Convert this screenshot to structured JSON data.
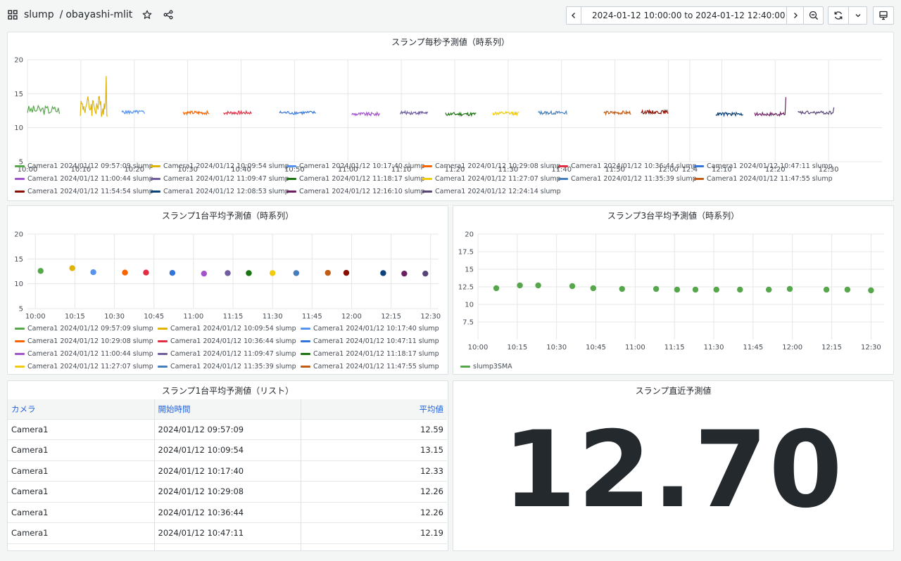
{
  "header": {
    "folder": "slump",
    "separator": "/",
    "dashboard": "obayashi-mlit",
    "time_range": "2024-01-12 10:00:00 to 2024-01-12 12:40:00"
  },
  "icons": {
    "apps": "grid-icon",
    "star": "star-icon",
    "share": "share-icon",
    "prev": "chevron-left-icon",
    "clock": "clock-icon",
    "caret": "chevron-down-icon",
    "next": "chevron-right-icon",
    "zoom": "zoom-out-icon",
    "refresh": "refresh-icon",
    "tv": "monitor-icon"
  },
  "panels": {
    "p1_title": "スランプ毎秒予測値（時系列）",
    "p2_title": "スランプ1台平均予測値（時系列）",
    "p3_title": "スランプ3台平均予測値（時系列）",
    "p4_title": "スランプ1台平均予測値（リスト）",
    "p5_title": "スランプ直近予測値"
  },
  "series_meta": [
    {
      "name": "Camera1 2024/01/12 09:57:09 slump",
      "color": "#56a64b"
    },
    {
      "name": "Camera1 2024/01/12 10:09:54 slump",
      "color": "#e0b400"
    },
    {
      "name": "Camera1 2024/01/12 10:17:40 slump",
      "color": "#5794f2"
    },
    {
      "name": "Camera1 2024/01/12 10:29:08 slump",
      "color": "#fa6400"
    },
    {
      "name": "Camera1 2024/01/12 10:36:44 slump",
      "color": "#e02f44"
    },
    {
      "name": "Camera1 2024/01/12 10:47:11 slump",
      "color": "#3274d9"
    },
    {
      "name": "Camera1 2024/01/12 11:00:44 slump",
      "color": "#a352cc"
    },
    {
      "name": "Camera1 2024/01/12 11:09:47 slump",
      "color": "#705da0"
    },
    {
      "name": "Camera1 2024/01/12 11:18:17 slump",
      "color": "#19730e"
    },
    {
      "name": "Camera1 2024/01/12 11:27:07 slump",
      "color": "#f2cc0c"
    },
    {
      "name": "Camera1 2024/01/12 11:35:39 slump",
      "color": "#447ebc"
    },
    {
      "name": "Camera1 2024/01/12 11:47:55 slump",
      "color": "#c15c17"
    },
    {
      "name": "Camera1 2024/01/12 11:54:54 slump",
      "color": "#890f02"
    },
    {
      "name": "Camera1 2024/01/12 12:08:53 slump",
      "color": "#0a437c"
    },
    {
      "name": "Camera1 2024/01/12 12:16:10 slump",
      "color": "#6d1f62"
    },
    {
      "name": "Camera1 2024/01/12 12:24:14 slump",
      "color": "#584477"
    }
  ],
  "chart_data": [
    {
      "type": "line",
      "xlabel": "",
      "ylabel": "",
      "xlim": [
        "10:00",
        "12:40"
      ],
      "ylim": [
        5,
        20
      ],
      "x_ticks": [
        "10:00",
        "10:10",
        "10:20",
        "10:30",
        "10:40",
        "10:50",
        "11:00",
        "11:10",
        "11:20",
        "11:30",
        "11:40",
        "11:50",
        "12:00",
        "12:10",
        "12:20",
        "12:30",
        "12:4"
      ],
      "y_ticks": [
        "5",
        "10",
        "15",
        "20"
      ],
      "grid": true,
      "legend": "bottom",
      "series": [
        {
          "start": "09:57:09",
          "end": "10:06:00",
          "level": 12.6
        },
        {
          "start": "10:09:54",
          "end": "10:15:00",
          "level": 13.2
        },
        {
          "start": "10:17:40",
          "end": "10:22:00",
          "level": 12.3
        },
        {
          "start": "10:29:08",
          "end": "10:34:00",
          "level": 12.2
        },
        {
          "start": "10:36:44",
          "end": "10:42:00",
          "level": 12.2
        },
        {
          "start": "10:47:11",
          "end": "10:54:00",
          "level": 12.2
        },
        {
          "start": "11:00:44",
          "end": "11:06:00",
          "level": 12.0
        },
        {
          "start": "11:09:47",
          "end": "11:15:00",
          "level": 12.2
        },
        {
          "start": "11:18:17",
          "end": "11:24:00",
          "level": 12.0
        },
        {
          "start": "11:27:07",
          "end": "11:32:00",
          "level": 12.1
        },
        {
          "start": "11:35:39",
          "end": "11:41:00",
          "level": 12.2
        },
        {
          "start": "11:47:55",
          "end": "11:53:00",
          "level": 12.2
        },
        {
          "start": "11:54:54",
          "end": "12:00:00",
          "level": 12.3
        },
        {
          "start": "12:08:53",
          "end": "12:14:00",
          "level": 12.0
        },
        {
          "start": "12:16:10",
          "end": "12:22:00",
          "level": 12.0
        },
        {
          "start": "12:24:14",
          "end": "12:31:00",
          "level": 12.2
        }
      ]
    },
    {
      "type": "scatter",
      "xlabel": "",
      "ylabel": "",
      "xlim": [
        "09:57",
        "12:33"
      ],
      "ylim": [
        5,
        20
      ],
      "x_ticks": [
        "10:00",
        "10:15",
        "10:30",
        "10:45",
        "11:00",
        "11:15",
        "11:30",
        "11:45",
        "12:00",
        "12:15",
        "12:30"
      ],
      "y_ticks": [
        "5",
        "10",
        "15",
        "20"
      ],
      "grid": true,
      "legend": "bottom",
      "points": [
        {
          "x": "10:02",
          "y": 12.59,
          "s": 0
        },
        {
          "x": "10:14",
          "y": 13.15,
          "s": 1
        },
        {
          "x": "10:22",
          "y": 12.33,
          "s": 2
        },
        {
          "x": "10:34",
          "y": 12.26,
          "s": 3
        },
        {
          "x": "10:42",
          "y": 12.26,
          "s": 4
        },
        {
          "x": "10:52",
          "y": 12.19,
          "s": 5
        },
        {
          "x": "11:04",
          "y": 12.05,
          "s": 6
        },
        {
          "x": "11:13",
          "y": 12.15,
          "s": 7
        },
        {
          "x": "11:21",
          "y": 12.15,
          "s": 8
        },
        {
          "x": "11:30",
          "y": 12.15,
          "s": 9
        },
        {
          "x": "11:39",
          "y": 12.15,
          "s": 10
        },
        {
          "x": "11:51",
          "y": 12.2,
          "s": 11
        },
        {
          "x": "11:58",
          "y": 12.2,
          "s": 12
        },
        {
          "x": "12:12",
          "y": 12.15,
          "s": 13
        },
        {
          "x": "12:20",
          "y": 12.05,
          "s": 14
        },
        {
          "x": "12:28",
          "y": 12.05,
          "s": 15
        }
      ],
      "legend_items": [
        0,
        1,
        2,
        3,
        4,
        5,
        6,
        7,
        8,
        9,
        10,
        11
      ]
    },
    {
      "type": "scatter",
      "xlabel": "",
      "ylabel": "",
      "xlim": [
        "10:00",
        "12:35"
      ],
      "ylim": [
        5,
        20
      ],
      "x_ticks": [
        "10:00",
        "10:15",
        "10:30",
        "10:45",
        "11:00",
        "11:15",
        "11:30",
        "11:45",
        "12:00",
        "12:15",
        "12:30"
      ],
      "y_ticks": [
        "7.5",
        "10",
        "12.5",
        "15",
        "17.5",
        "20"
      ],
      "grid": true,
      "legend": "bottom",
      "series": [
        {
          "name": "slump3SMA",
          "color": "#56a64b",
          "points": [
            {
              "x": "10:07",
              "y": 12.3
            },
            {
              "x": "10:16",
              "y": 12.7
            },
            {
              "x": "10:23",
              "y": 12.7
            },
            {
              "x": "10:36",
              "y": 12.6
            },
            {
              "x": "10:44",
              "y": 12.3
            },
            {
              "x": "10:55",
              "y": 12.2
            },
            {
              "x": "11:08",
              "y": 12.2
            },
            {
              "x": "11:16",
              "y": 12.1
            },
            {
              "x": "11:23",
              "y": 12.1
            },
            {
              "x": "11:31",
              "y": 12.1
            },
            {
              "x": "11:40",
              "y": 12.1
            },
            {
              "x": "11:51",
              "y": 12.1
            },
            {
              "x": "11:59",
              "y": 12.2
            },
            {
              "x": "12:13",
              "y": 12.1
            },
            {
              "x": "12:21",
              "y": 12.1
            },
            {
              "x": "12:30",
              "y": 12.0
            }
          ]
        }
      ]
    }
  ],
  "list_table": {
    "headers": [
      "カメラ",
      "開始時間",
      "平均値"
    ],
    "rows": [
      [
        "Camera1",
        "2024/01/12 09:57:09",
        "12.59"
      ],
      [
        "Camera1",
        "2024/01/12 10:09:54",
        "13.15"
      ],
      [
        "Camera1",
        "2024/01/12 10:17:40",
        "12.33"
      ],
      [
        "Camera1",
        "2024/01/12 10:29:08",
        "12.26"
      ],
      [
        "Camera1",
        "2024/01/12 10:36:44",
        "12.26"
      ],
      [
        "Camera1",
        "2024/01/12 10:47:11",
        "12.19"
      ]
    ]
  },
  "stat": {
    "value": "12.70"
  }
}
